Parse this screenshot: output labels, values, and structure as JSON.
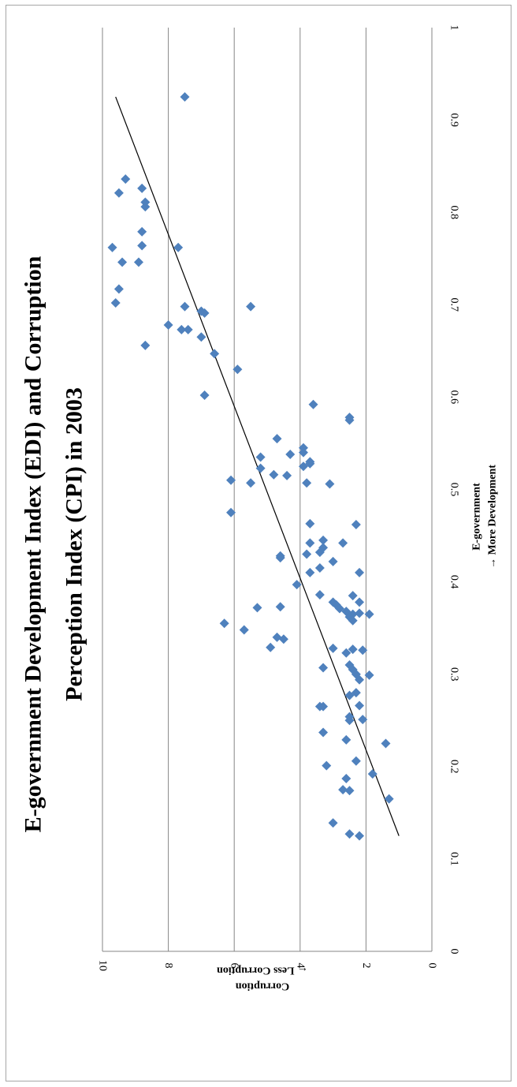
{
  "chart_data": {
    "type": "scatter",
    "title_lines": [
      "E-government Development Index (EDI) and Corruption",
      "Perception Index (CPI) in 2003"
    ],
    "xlabel_lines": [
      "E-government",
      "→ More Development"
    ],
    "ylabel_lines": [
      "Corruption",
      "← Less Corruption"
    ],
    "xlim": [
      0,
      1
    ],
    "ylim": [
      0,
      10
    ],
    "x_ticks": [
      "0",
      "0.1",
      "0.2",
      "0.3",
      "0.4",
      "0.5",
      "0.6",
      "0.7",
      "0.8",
      "0.9",
      "1"
    ],
    "y_ticks": [
      "0",
      "2",
      "4",
      "6",
      "8",
      "10"
    ],
    "grid": "horizontal",
    "marker_color": "#4f81bd",
    "trendline": {
      "x": [
        0.125,
        0.925
      ],
      "y": [
        1.0,
        9.6
      ]
    },
    "points": [
      {
        "x": 0.925,
        "y": 7.5
      },
      {
        "x": 0.836,
        "y": 9.3
      },
      {
        "x": 0.826,
        "y": 8.8
      },
      {
        "x": 0.821,
        "y": 9.5
      },
      {
        "x": 0.811,
        "y": 8.7
      },
      {
        "x": 0.806,
        "y": 8.7
      },
      {
        "x": 0.779,
        "y": 8.8
      },
      {
        "x": 0.764,
        "y": 8.8
      },
      {
        "x": 0.762,
        "y": 9.7
      },
      {
        "x": 0.762,
        "y": 7.7
      },
      {
        "x": 0.746,
        "y": 9.4
      },
      {
        "x": 0.746,
        "y": 8.9
      },
      {
        "x": 0.717,
        "y": 9.5
      },
      {
        "x": 0.702,
        "y": 9.6
      },
      {
        "x": 0.698,
        "y": 7.5
      },
      {
        "x": 0.698,
        "y": 5.5
      },
      {
        "x": 0.693,
        "y": 7.0
      },
      {
        "x": 0.691,
        "y": 6.9
      },
      {
        "x": 0.678,
        "y": 8.0
      },
      {
        "x": 0.673,
        "y": 7.6
      },
      {
        "x": 0.673,
        "y": 7.4
      },
      {
        "x": 0.665,
        "y": 7.0
      },
      {
        "x": 0.656,
        "y": 8.7
      },
      {
        "x": 0.647,
        "y": 6.6
      },
      {
        "x": 0.63,
        "y": 5.9
      },
      {
        "x": 0.602,
        "y": 6.9
      },
      {
        "x": 0.592,
        "y": 3.6
      },
      {
        "x": 0.578,
        "y": 2.5
      },
      {
        "x": 0.575,
        "y": 2.5
      },
      {
        "x": 0.555,
        "y": 4.7
      },
      {
        "x": 0.545,
        "y": 3.9
      },
      {
        "x": 0.54,
        "y": 3.9
      },
      {
        "x": 0.538,
        "y": 4.3
      },
      {
        "x": 0.535,
        "y": 5.2
      },
      {
        "x": 0.53,
        "y": 3.7
      },
      {
        "x": 0.528,
        "y": 3.7
      },
      {
        "x": 0.525,
        "y": 3.9
      },
      {
        "x": 0.523,
        "y": 5.2
      },
      {
        "x": 0.516,
        "y": 4.8
      },
      {
        "x": 0.515,
        "y": 4.4
      },
      {
        "x": 0.51,
        "y": 6.1
      },
      {
        "x": 0.507,
        "y": 5.5
      },
      {
        "x": 0.507,
        "y": 3.8
      },
      {
        "x": 0.506,
        "y": 3.1
      },
      {
        "x": 0.475,
        "y": 6.1
      },
      {
        "x": 0.463,
        "y": 3.7
      },
      {
        "x": 0.462,
        "y": 2.3
      },
      {
        "x": 0.445,
        "y": 3.3
      },
      {
        "x": 0.442,
        "y": 3.7
      },
      {
        "x": 0.442,
        "y": 2.7
      },
      {
        "x": 0.437,
        "y": 3.3
      },
      {
        "x": 0.432,
        "y": 3.4
      },
      {
        "x": 0.43,
        "y": 3.8
      },
      {
        "x": 0.428,
        "y": 4.6
      },
      {
        "x": 0.426,
        "y": 4.6
      },
      {
        "x": 0.422,
        "y": 3.0
      },
      {
        "x": 0.415,
        "y": 3.4
      },
      {
        "x": 0.41,
        "y": 3.7
      },
      {
        "x": 0.41,
        "y": 2.2
      },
      {
        "x": 0.397,
        "y": 4.1
      },
      {
        "x": 0.386,
        "y": 3.4
      },
      {
        "x": 0.385,
        "y": 2.4
      },
      {
        "x": 0.378,
        "y": 3.0
      },
      {
        "x": 0.378,
        "y": 2.2
      },
      {
        "x": 0.375,
        "y": 2.9
      },
      {
        "x": 0.373,
        "y": 4.6
      },
      {
        "x": 0.372,
        "y": 5.3
      },
      {
        "x": 0.371,
        "y": 2.8
      },
      {
        "x": 0.368,
        "y": 2.6
      },
      {
        "x": 0.366,
        "y": 2.2
      },
      {
        "x": 0.365,
        "y": 2.4
      },
      {
        "x": 0.365,
        "y": 1.9
      },
      {
        "x": 0.362,
        "y": 2.5
      },
      {
        "x": 0.358,
        "y": 2.4
      },
      {
        "x": 0.355,
        "y": 6.3
      },
      {
        "x": 0.348,
        "y": 5.7
      },
      {
        "x": 0.34,
        "y": 4.7
      },
      {
        "x": 0.338,
        "y": 4.5
      },
      {
        "x": 0.329,
        "y": 4.9
      },
      {
        "x": 0.328,
        "y": 3.0
      },
      {
        "x": 0.327,
        "y": 2.4
      },
      {
        "x": 0.326,
        "y": 2.1
      },
      {
        "x": 0.323,
        "y": 2.6
      },
      {
        "x": 0.31,
        "y": 2.5
      },
      {
        "x": 0.307,
        "y": 3.3
      },
      {
        "x": 0.305,
        "y": 2.4
      },
      {
        "x": 0.3,
        "y": 2.3
      },
      {
        "x": 0.299,
        "y": 1.9
      },
      {
        "x": 0.294,
        "y": 2.2
      },
      {
        "x": 0.277,
        "y": 2.5
      },
      {
        "x": 0.28,
        "y": 2.3
      },
      {
        "x": 0.265,
        "y": 3.4
      },
      {
        "x": 0.265,
        "y": 3.3
      },
      {
        "x": 0.266,
        "y": 2.2
      },
      {
        "x": 0.254,
        "y": 2.5
      },
      {
        "x": 0.25,
        "y": 2.5
      },
      {
        "x": 0.251,
        "y": 2.1
      },
      {
        "x": 0.237,
        "y": 3.3
      },
      {
        "x": 0.229,
        "y": 2.6
      },
      {
        "x": 0.225,
        "y": 1.4
      },
      {
        "x": 0.206,
        "y": 2.3
      },
      {
        "x": 0.201,
        "y": 3.2
      },
      {
        "x": 0.192,
        "y": 1.8
      },
      {
        "x": 0.187,
        "y": 2.6
      },
      {
        "x": 0.175,
        "y": 2.7
      },
      {
        "x": 0.174,
        "y": 2.5
      },
      {
        "x": 0.165,
        "y": 1.3
      },
      {
        "x": 0.139,
        "y": 3.0
      },
      {
        "x": 0.127,
        "y": 2.5
      },
      {
        "x": 0.125,
        "y": 2.2
      }
    ]
  }
}
